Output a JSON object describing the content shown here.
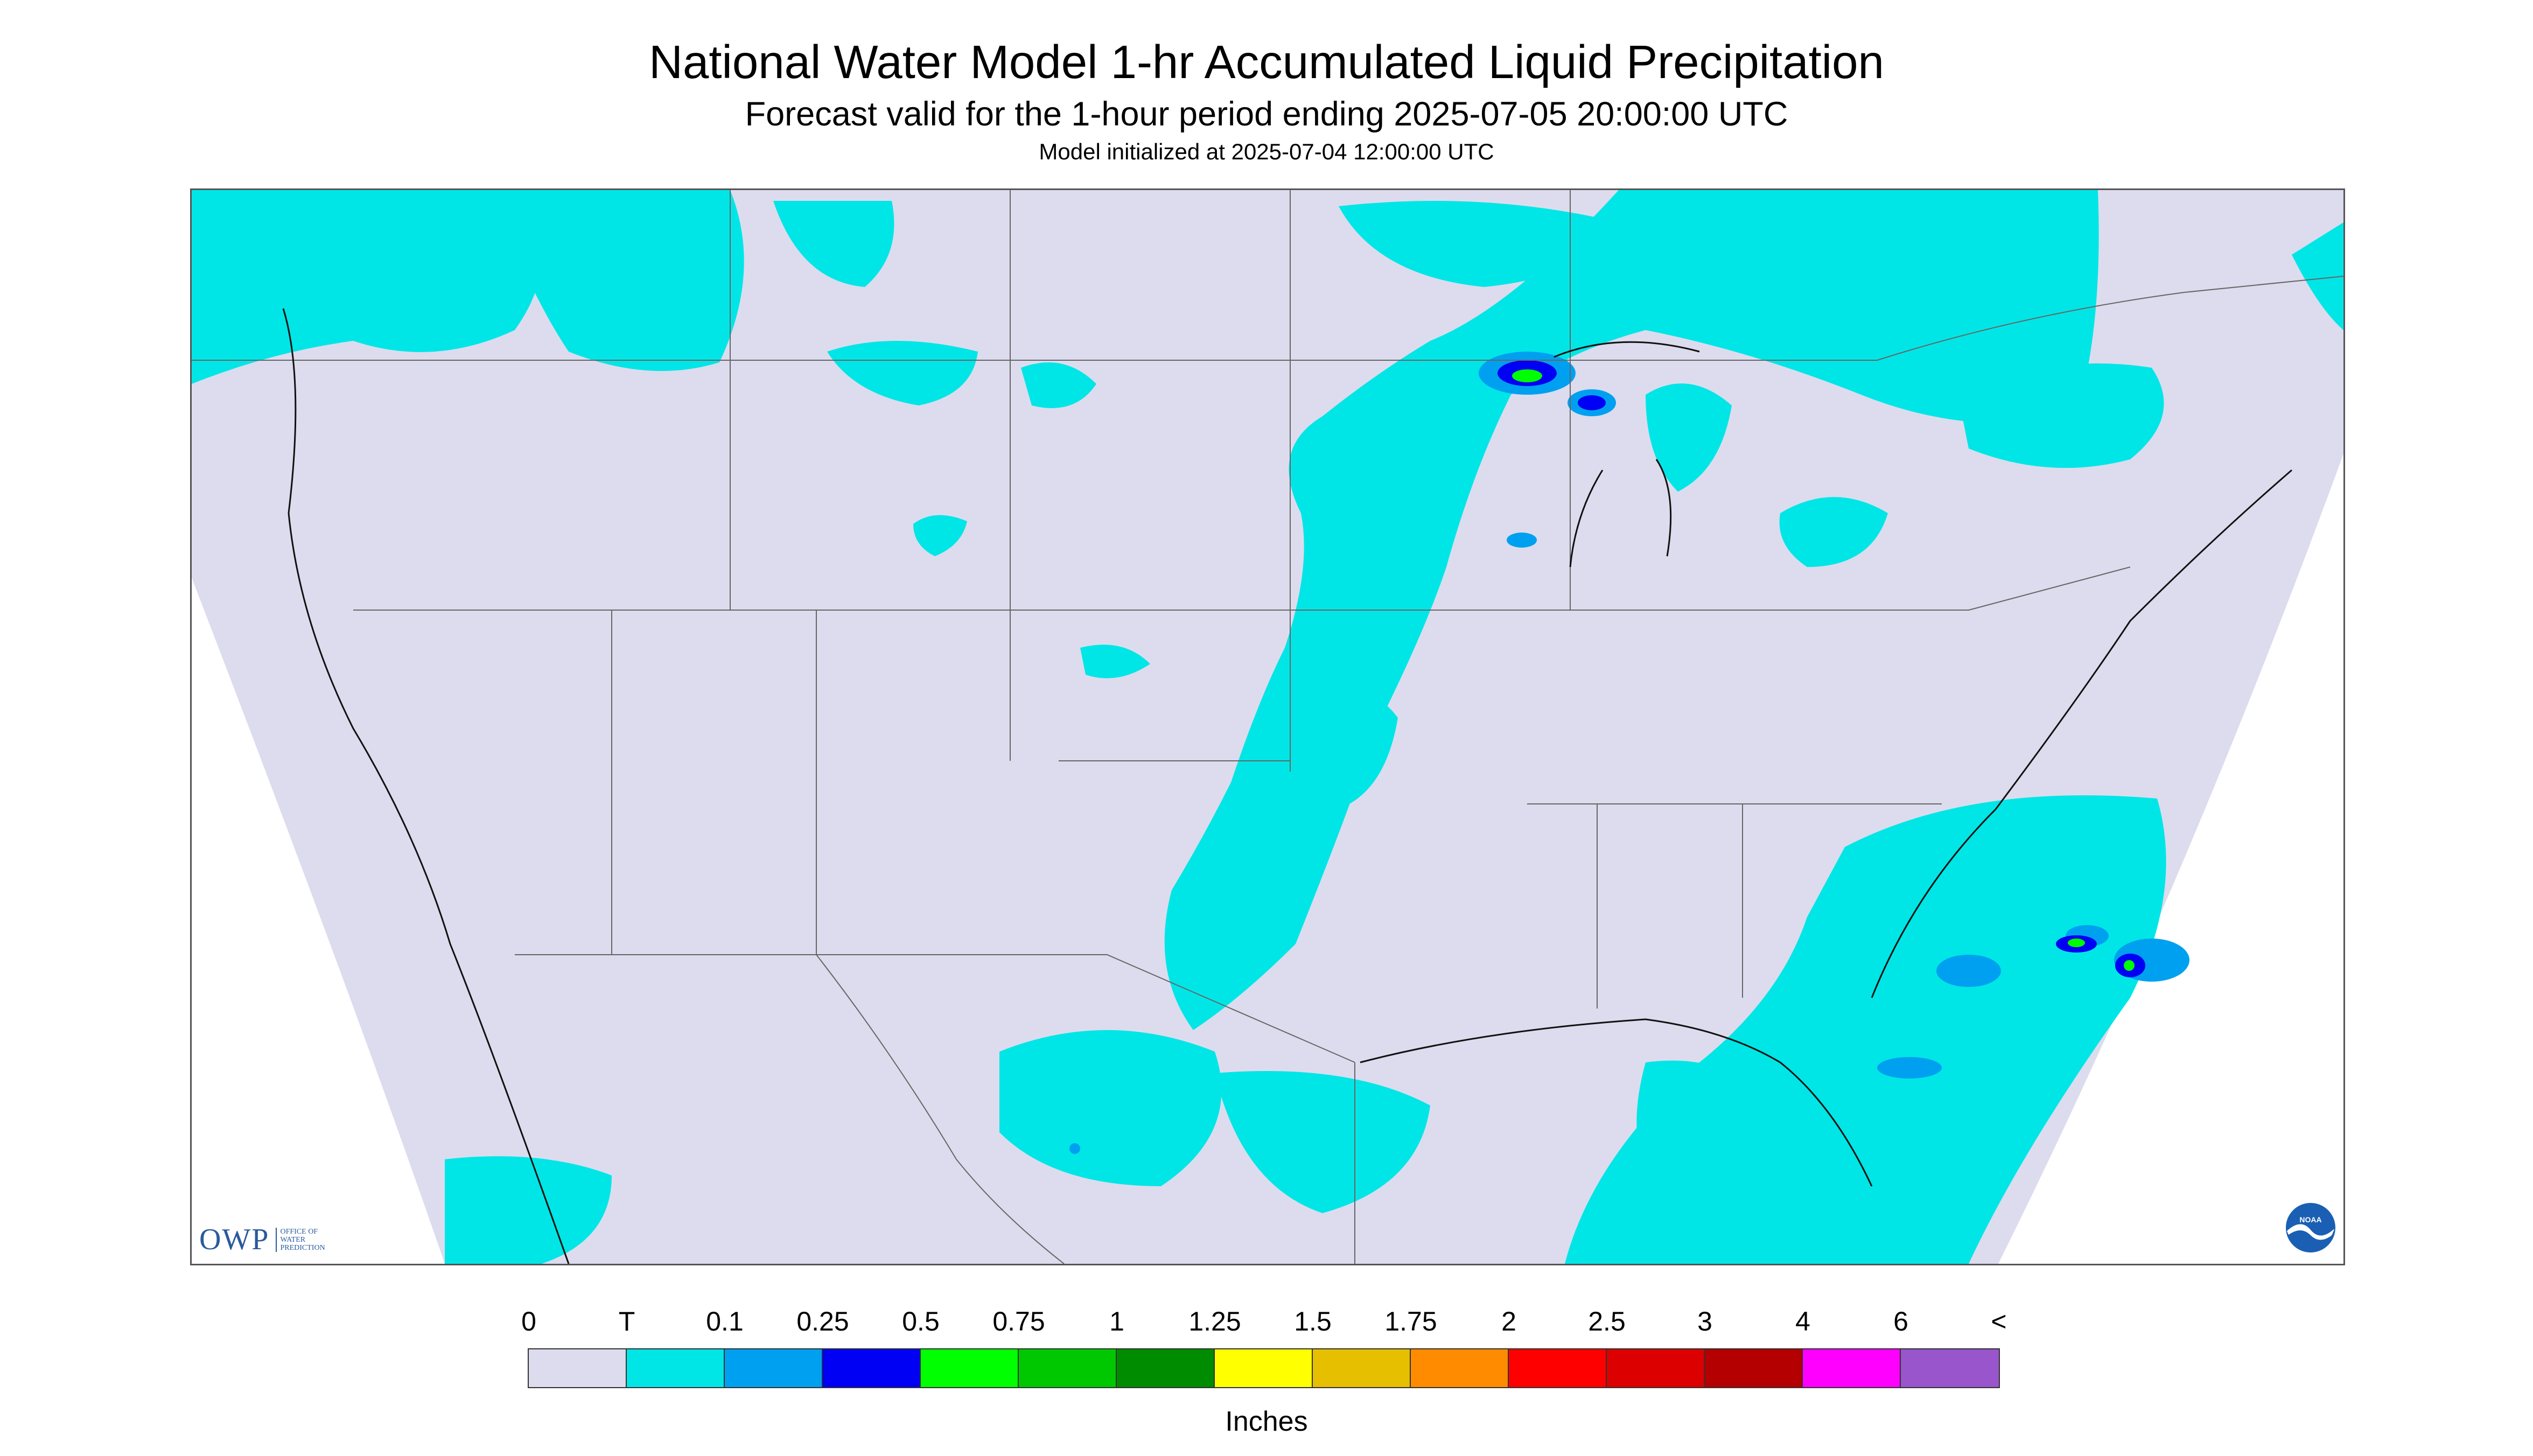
{
  "title": "National Water Model 1-hr Accumulated Liquid Precipitation",
  "subtitle": "Forecast valid for the 1-hour period ending 2025-07-05 20:00:00 UTC",
  "init_line": "Model initialized at 2025-07-04 12:00:00 UTC",
  "logos": {
    "owp_letters": "OWP",
    "owp_sub": "OFFICE OF WATER PREDICTION",
    "noaa": "NOAA"
  },
  "legend": {
    "labels": [
      "0",
      "T",
      "0.1",
      "0.25",
      "0.5",
      "0.75",
      "1",
      "1.25",
      "1.5",
      "1.75",
      "2",
      "2.5",
      "3",
      "4",
      "6",
      "<"
    ],
    "colors": [
      "#dcdcee",
      "#00e6e6",
      "#00a0f0",
      "#0000f5",
      "#00ff00",
      "#00c800",
      "#008c00",
      "#ffff00",
      "#e6c000",
      "#ff8c00",
      "#ff0000",
      "#dc0000",
      "#b40000",
      "#ff00ff",
      "#9955cc"
    ],
    "units": "Inches"
  },
  "colors": {
    "no_precip": "#dcdcee",
    "trace": "#00e6e6",
    "light": "#00a0f0",
    "moderate": "#0000f5",
    "heavy_green": "#00ff00",
    "heavy_dkgreen": "#00c800",
    "outside_domain": "#ffffff",
    "borders": "#666666",
    "coast": "#111111"
  }
}
